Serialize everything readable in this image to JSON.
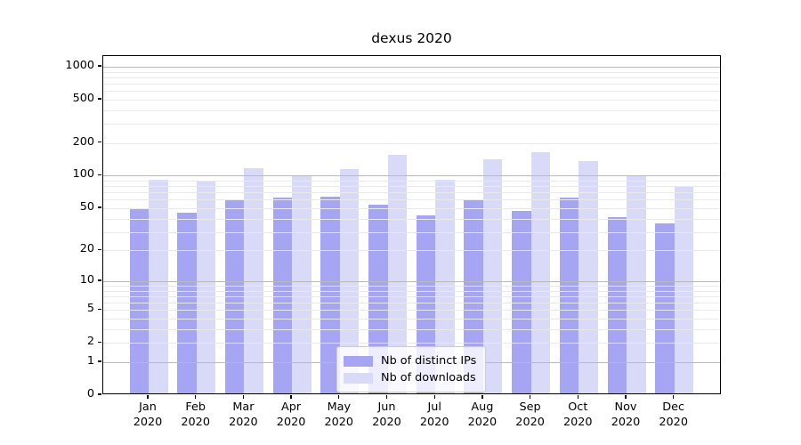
{
  "title": "dexus 2020",
  "legend": {
    "items": [
      {
        "label": "Nb of distinct IPs",
        "color": "#a5a5f3"
      },
      {
        "label": "Nb of downloads",
        "color": "#d9d9f8"
      }
    ]
  },
  "axes": {
    "y_tick_labels": [
      "1000",
      "500",
      "200",
      "100",
      "50",
      "20",
      "10",
      "5",
      "2",
      "1",
      "0"
    ],
    "x_sublabel": "2020"
  },
  "colors": {
    "bar_distinct_ips": "#a5a5f3",
    "bar_downloads": "#d9d9f8",
    "major_grid": "#b9b9b9",
    "minor_grid": "#e9e9e9",
    "spine": "#000000",
    "background": "#ffffff"
  },
  "chart_data": {
    "type": "bar",
    "title": "dexus 2020",
    "categories": [
      "Jan",
      "Feb",
      "Mar",
      "Apr",
      "May",
      "Jun",
      "Jul",
      "Aug",
      "Sep",
      "Oct",
      "Nov",
      "Dec"
    ],
    "x_sublabel": "2020",
    "series": [
      {
        "name": "Nb of distinct IPs",
        "color": "#a5a5f3",
        "values": [
          48,
          44,
          57,
          61,
          62,
          52,
          41,
          57,
          45,
          61,
          40,
          35
        ]
      },
      {
        "name": "Nb of downloads",
        "color": "#d9d9f8",
        "values": [
          89,
          87,
          113,
          95,
          110,
          150,
          88,
          136,
          160,
          131,
          95,
          78
        ]
      }
    ],
    "yscale": "log1p",
    "ylim": [
      0,
      1250
    ],
    "y_ticks": [
      0,
      1,
      2,
      5,
      10,
      20,
      50,
      100,
      200,
      500,
      1000
    ],
    "minor_gridlines": [
      2,
      3,
      4,
      5,
      6,
      7,
      8,
      9,
      20,
      30,
      40,
      50,
      60,
      70,
      80,
      90,
      200,
      300,
      400,
      500,
      600,
      700,
      800,
      900
    ],
    "major_gridlines": [
      1,
      10,
      100,
      1000
    ],
    "grid": "horizontal",
    "legend_position": "lower center"
  }
}
